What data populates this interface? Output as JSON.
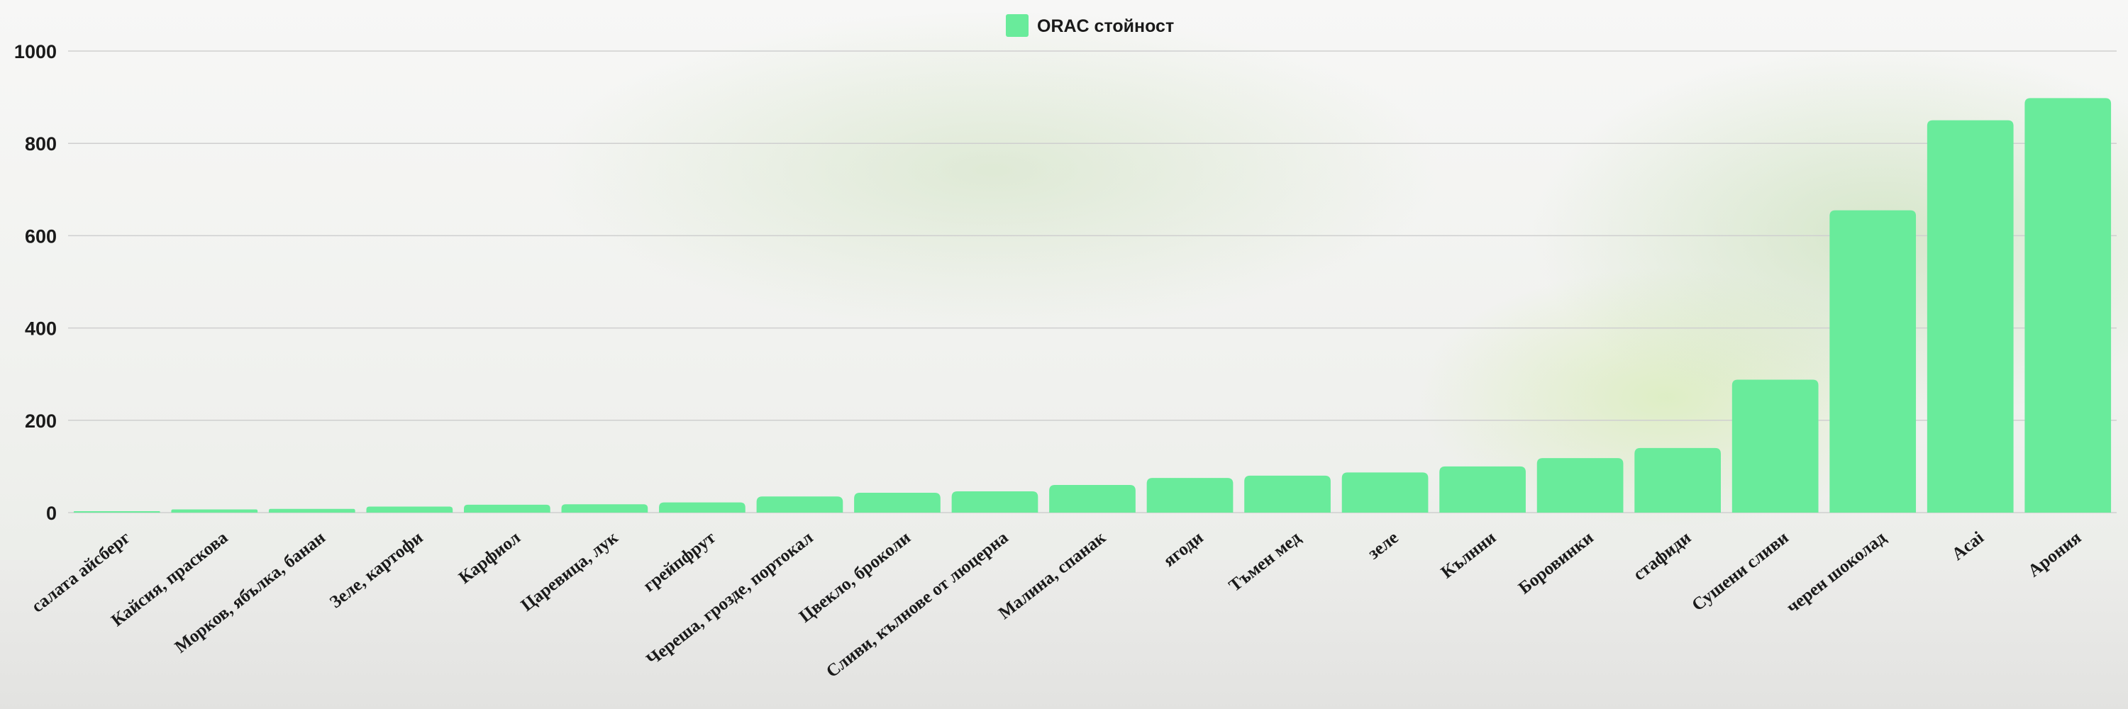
{
  "chart_data": {
    "type": "bar",
    "categories": [
      "салата айсберг",
      "Кайсия, праскова",
      "Морков, ябълка, банан",
      "Зеле, картофи",
      "Карфиол",
      "Царевица, лук",
      "грейпфрут",
      "Череша, грозде, портокал",
      "Цвекло, броколи",
      "Сливи, кълнове от люцерна",
      "Малина, спанак",
      "ягоди",
      "Тъмен мед",
      "зеле",
      "Кълнни",
      "Боровинки",
      "стафиди",
      "Сушени сливи",
      "черен шоколад",
      "Acai",
      "Арония"
    ],
    "series": [
      {
        "name": "ORAC стойност",
        "values": [
          3,
          7,
          8,
          13,
          17,
          18,
          22,
          35,
          43,
          46,
          60,
          75,
          80,
          87,
          100,
          118,
          140,
          288,
          655,
          850,
          898
        ]
      }
    ],
    "title": "",
    "xlabel": "",
    "ylabel": "",
    "ylim": [
      0,
      1000
    ],
    "yticks": [
      "0",
      "200",
      "400",
      "600",
      "800",
      "1000"
    ],
    "grid": true,
    "legend_position": "top-center",
    "bar_color": "#69eb9b",
    "grid_color": "#cfcfcf"
  }
}
